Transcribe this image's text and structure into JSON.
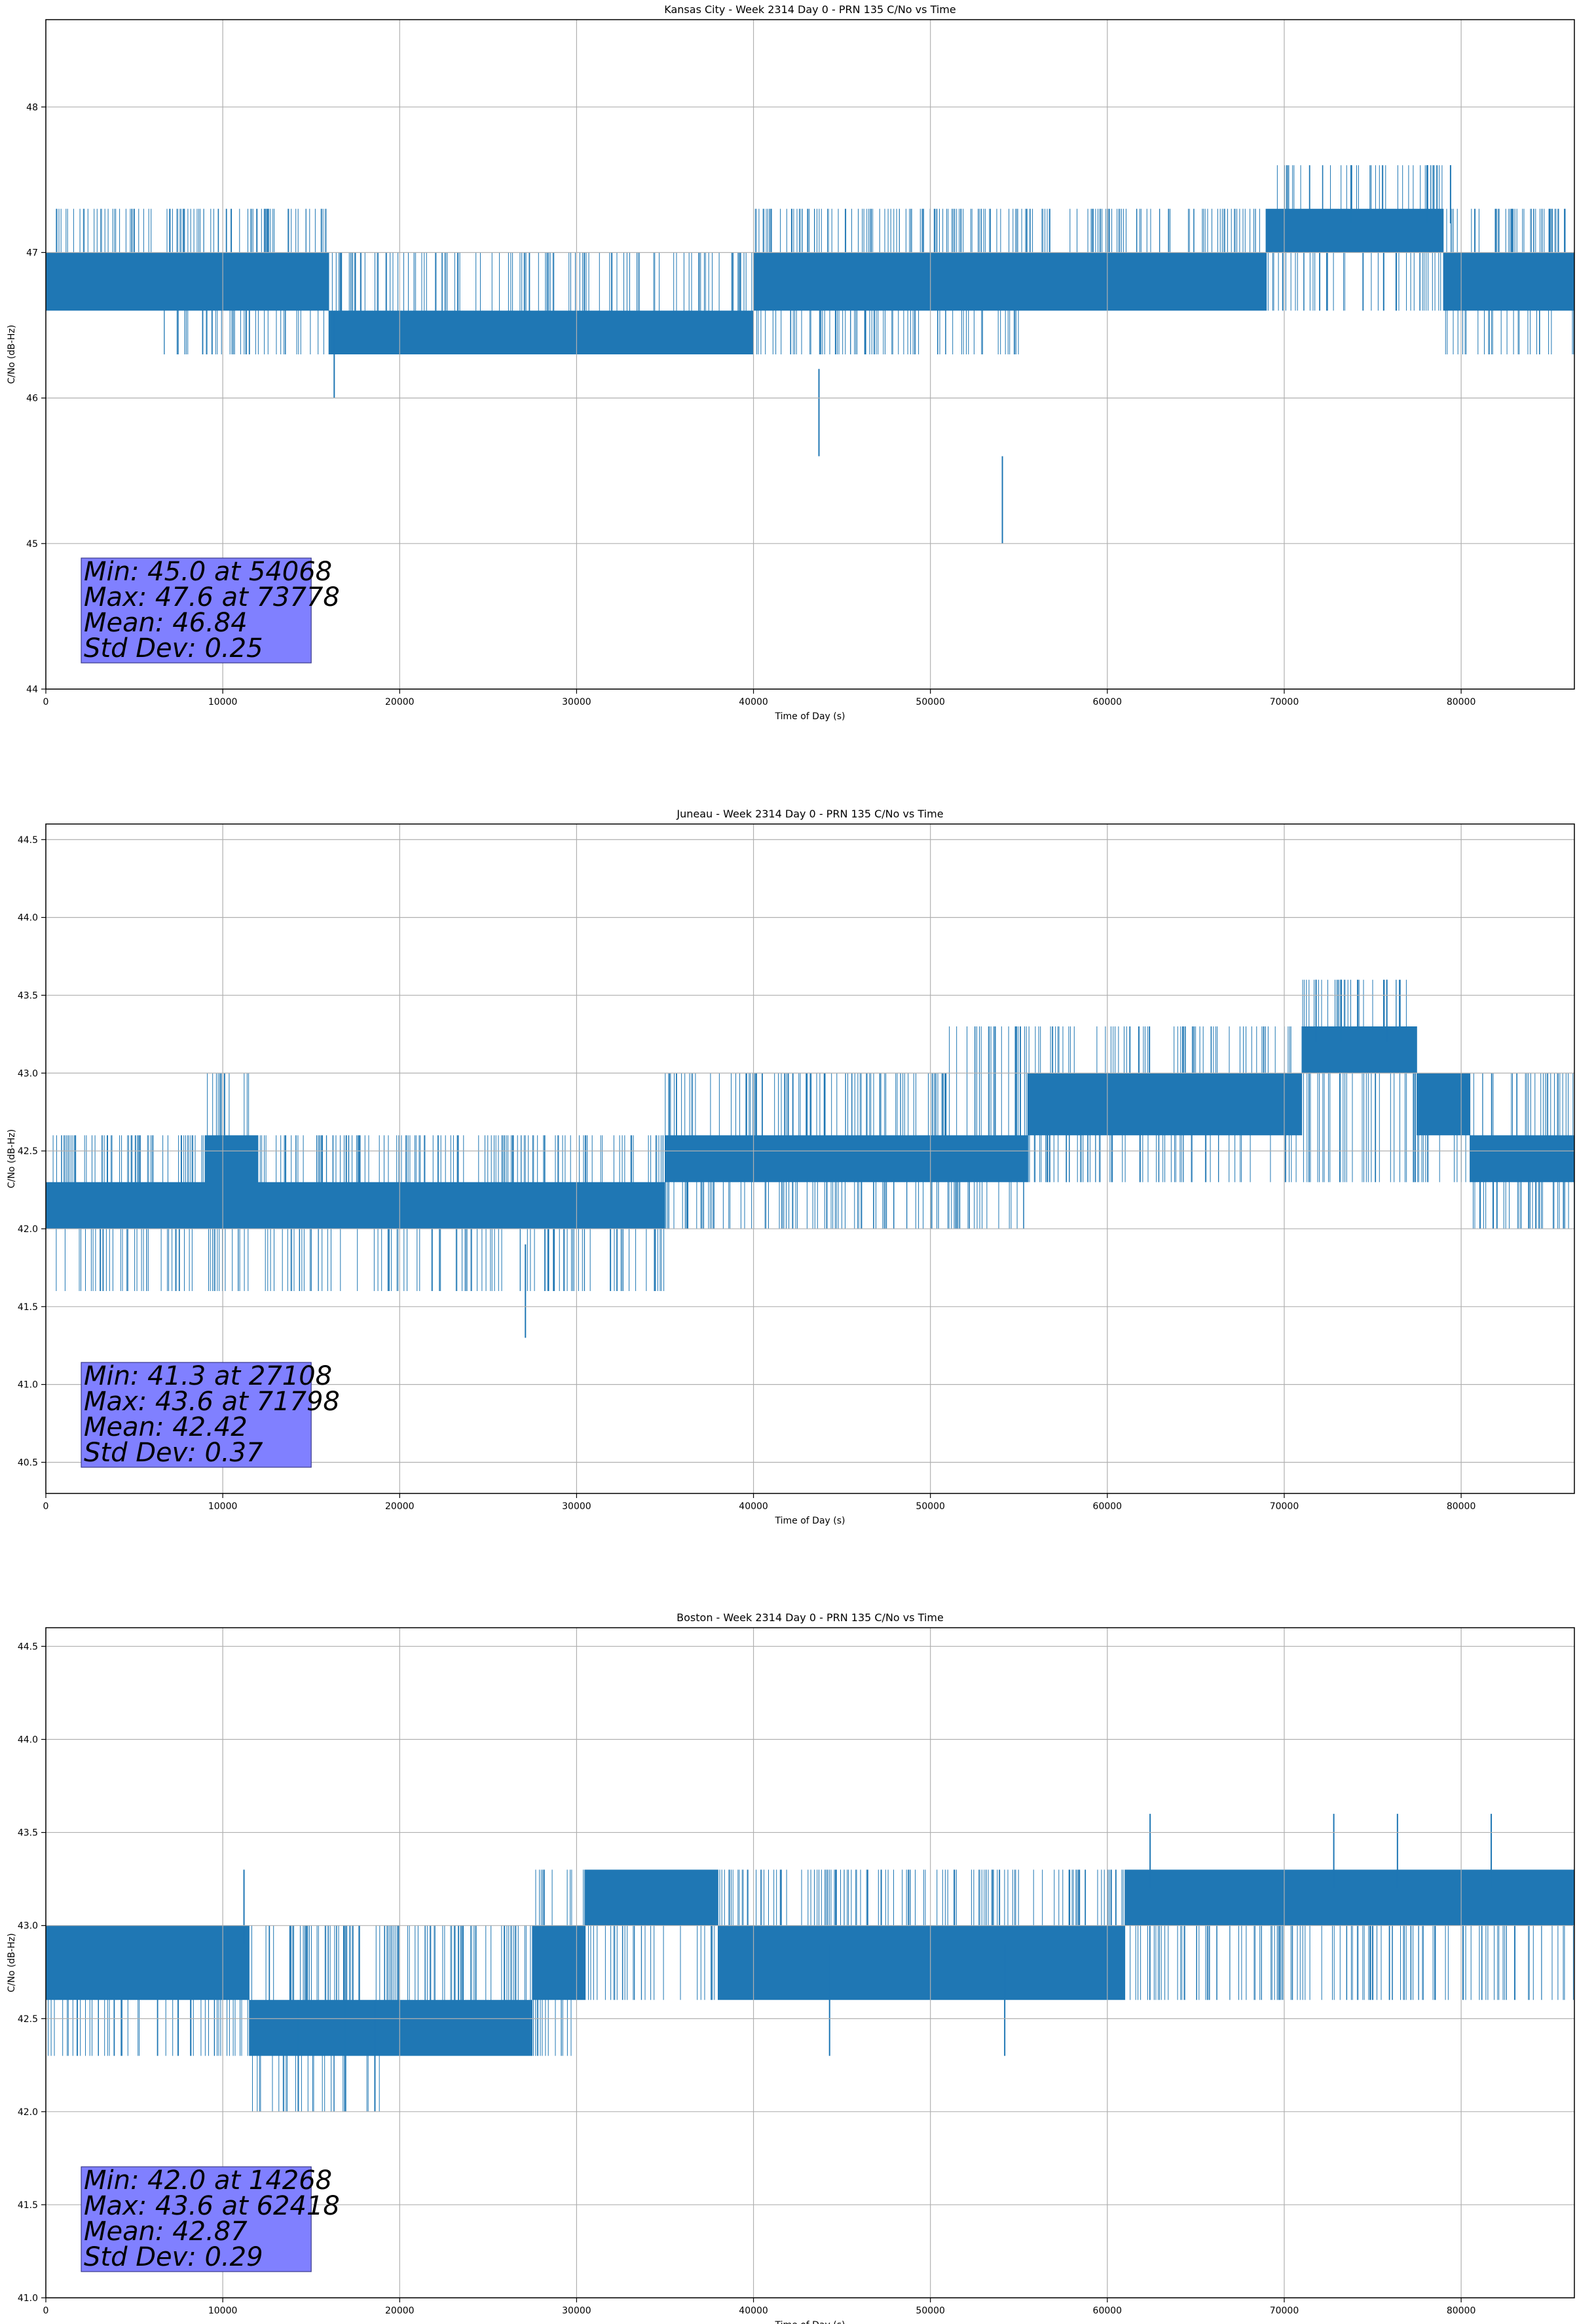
{
  "chart_data": [
    {
      "type": "line",
      "title": "Kansas City - Week 2314 Day 0 - PRN 135 C/No vs Time",
      "xlabel": "Time of Day (s)",
      "ylabel": "C/No (dB-Hz)",
      "xlim": [
        0,
        86400
      ],
      "ylim": [
        44,
        48.6
      ],
      "xticks": [
        0,
        10000,
        20000,
        30000,
        40000,
        50000,
        60000,
        70000,
        80000
      ],
      "xtick_labels": [
        "0",
        "10000",
        "20000",
        "30000",
        "40000",
        "50000",
        "60000",
        "70000",
        "80000"
      ],
      "yticks": [
        44,
        45,
        46,
        47,
        48
      ],
      "ytick_labels": [
        "44",
        "45",
        "46",
        "47",
        "48"
      ],
      "grid": true,
      "series_color": "#1f77b4",
      "segments": [
        {
          "x0": 0,
          "x1": 6500,
          "low": 46.6,
          "high": 47.0,
          "spike_high": 47.3,
          "spike_low": 46.6
        },
        {
          "x0": 6500,
          "x1": 16000,
          "low": 46.6,
          "high": 47.0,
          "spike_high": 47.3,
          "spike_low": 46.3
        },
        {
          "x0": 16000,
          "x1": 40000,
          "low": 46.3,
          "high": 46.6,
          "spike_high": 47.0,
          "spike_low": 46.3
        },
        {
          "x0": 40000,
          "x1": 55000,
          "low": 46.6,
          "high": 47.0,
          "spike_high": 47.3,
          "spike_low": 46.3
        },
        {
          "x0": 55000,
          "x1": 69000,
          "low": 46.6,
          "high": 47.0,
          "spike_high": 47.3,
          "spike_low": 46.6
        },
        {
          "x0": 69000,
          "x1": 79000,
          "low": 47.0,
          "high": 47.3,
          "spike_high": 47.6,
          "spike_low": 46.6
        },
        {
          "x0": 79000,
          "x1": 86400,
          "low": 46.6,
          "high": 47.0,
          "spike_high": 47.3,
          "spike_low": 46.3
        }
      ],
      "dips": [
        {
          "x": 16300,
          "y": 46.0
        },
        {
          "x": 43700,
          "y": 45.6
        },
        {
          "x": 54068,
          "y": 45.0
        }
      ],
      "peaks": [
        {
          "x": 73778,
          "y": 47.6
        },
        {
          "x": 78100,
          "y": 47.6
        },
        {
          "x": 79400,
          "y": 47.6
        }
      ],
      "stats": [
        "Min: 45.0 at 54068",
        "Max: 47.6 at 73778",
        "Mean: 46.84",
        "Std Dev: 0.25"
      ],
      "stats_box_color": "#8080ff"
    },
    {
      "type": "line",
      "title": "Juneau - Week 2314 Day 0 - PRN 135 C/No vs Time",
      "xlabel": "Time of Day (s)",
      "ylabel": "C/No (dB-Hz)",
      "xlim": [
        0,
        86400
      ],
      "ylim": [
        40.3,
        44.6
      ],
      "xticks": [
        0,
        10000,
        20000,
        30000,
        40000,
        50000,
        60000,
        70000,
        80000
      ],
      "xtick_labels": [
        "0",
        "10000",
        "20000",
        "30000",
        "40000",
        "50000",
        "60000",
        "70000",
        "80000"
      ],
      "yticks": [
        40.5,
        41.0,
        41.5,
        42.0,
        42.5,
        43.0,
        43.5,
        44.0,
        44.5
      ],
      "ytick_labels": [
        "40.5",
        "41.0",
        "41.5",
        "42.0",
        "42.5",
        "43.0",
        "43.5",
        "44.0",
        "44.5"
      ],
      "grid": true,
      "series_color": "#1f77b4",
      "segments": [
        {
          "x0": 0,
          "x1": 9000,
          "low": 42.0,
          "high": 42.3,
          "spike_high": 42.6,
          "spike_low": 41.6
        },
        {
          "x0": 9000,
          "x1": 12000,
          "low": 42.0,
          "high": 42.6,
          "spike_high": 43.0,
          "spike_low": 41.6
        },
        {
          "x0": 12000,
          "x1": 35000,
          "low": 42.0,
          "high": 42.3,
          "spike_high": 42.6,
          "spike_low": 41.6
        },
        {
          "x0": 35000,
          "x1": 51000,
          "low": 42.3,
          "high": 42.6,
          "spike_high": 43.0,
          "spike_low": 42.0
        },
        {
          "x0": 51000,
          "x1": 55500,
          "low": 42.3,
          "high": 42.6,
          "spike_high": 43.3,
          "spike_low": 42.0
        },
        {
          "x0": 55500,
          "x1": 71000,
          "low": 42.6,
          "high": 43.0,
          "spike_high": 43.3,
          "spike_low": 42.3
        },
        {
          "x0": 71000,
          "x1": 77500,
          "low": 43.0,
          "high": 43.3,
          "spike_high": 43.6,
          "spike_low": 42.3
        },
        {
          "x0": 77500,
          "x1": 80500,
          "low": 42.6,
          "high": 43.0,
          "spike_high": 43.0,
          "spike_low": 42.3
        },
        {
          "x0": 80500,
          "x1": 86400,
          "low": 42.3,
          "high": 42.6,
          "spike_high": 43.0,
          "spike_low": 42.0
        }
      ],
      "dips": [
        {
          "x": 27108,
          "y": 41.3
        }
      ],
      "peaks": [
        {
          "x": 10100,
          "y": 43.0
        },
        {
          "x": 71798,
          "y": 43.6
        },
        {
          "x": 73200,
          "y": 43.6
        },
        {
          "x": 75800,
          "y": 43.6
        }
      ],
      "stats": [
        "Min: 41.3 at 27108",
        "Max: 43.6 at 71798",
        "Mean: 42.42",
        "Std Dev: 0.37"
      ],
      "stats_box_color": "#8080ff"
    },
    {
      "type": "line",
      "title": "Boston - Week 2314 Day 0 - PRN 135 C/No vs Time",
      "xlabel": "Time of Day (s)",
      "ylabel": "C/No (dB-Hz)",
      "xlim": [
        0,
        86400
      ],
      "ylim": [
        41.0,
        44.6
      ],
      "xticks": [
        0,
        10000,
        20000,
        30000,
        40000,
        50000,
        60000,
        70000,
        80000
      ],
      "xtick_labels": [
        "0",
        "10000",
        "20000",
        "30000",
        "40000",
        "50000",
        "60000",
        "70000",
        "80000"
      ],
      "yticks": [
        41.0,
        41.5,
        42.0,
        42.5,
        43.0,
        43.5,
        44.0,
        44.5
      ],
      "ytick_labels": [
        "41.0",
        "41.5",
        "42.0",
        "42.5",
        "43.0",
        "43.5",
        "44.0",
        "44.5"
      ],
      "grid": true,
      "series_color": "#1f77b4",
      "segments": [
        {
          "x0": 0,
          "x1": 11500,
          "low": 42.6,
          "high": 43.0,
          "spike_high": 43.0,
          "spike_low": 42.3
        },
        {
          "x0": 11500,
          "x1": 19000,
          "low": 42.3,
          "high": 42.6,
          "spike_high": 43.0,
          "spike_low": 42.0
        },
        {
          "x0": 19000,
          "x1": 27500,
          "low": 42.3,
          "high": 42.6,
          "spike_high": 43.0,
          "spike_low": 42.3
        },
        {
          "x0": 27500,
          "x1": 30500,
          "low": 42.6,
          "high": 43.0,
          "spike_high": 43.3,
          "spike_low": 42.3
        },
        {
          "x0": 30500,
          "x1": 38000,
          "low": 43.0,
          "high": 43.3,
          "spike_high": 43.3,
          "spike_low": 42.6
        },
        {
          "x0": 38000,
          "x1": 55000,
          "low": 42.6,
          "high": 43.0,
          "spike_high": 43.3,
          "spike_low": 42.6
        },
        {
          "x0": 55000,
          "x1": 61000,
          "low": 42.6,
          "high": 43.0,
          "spike_high": 43.3,
          "spike_low": 42.6
        },
        {
          "x0": 61000,
          "x1": 86400,
          "low": 43.0,
          "high": 43.3,
          "spike_high": 43.3,
          "spike_low": 42.6
        }
      ],
      "dips": [
        {
          "x": 14268,
          "y": 42.0
        },
        {
          "x": 16900,
          "y": 42.0
        },
        {
          "x": 18600,
          "y": 42.0
        },
        {
          "x": 44300,
          "y": 42.3
        },
        {
          "x": 54200,
          "y": 42.3
        }
      ],
      "peaks": [
        {
          "x": 11200,
          "y": 43.3
        },
        {
          "x": 62418,
          "y": 43.6
        },
        {
          "x": 72800,
          "y": 43.6
        },
        {
          "x": 76400,
          "y": 43.6
        },
        {
          "x": 81700,
          "y": 43.6
        }
      ],
      "stats": [
        "Min: 42.0 at 14268",
        "Max: 43.6 at 62418",
        "Mean: 42.87",
        "Std Dev: 0.29"
      ],
      "stats_box_color": "#8080ff"
    }
  ]
}
